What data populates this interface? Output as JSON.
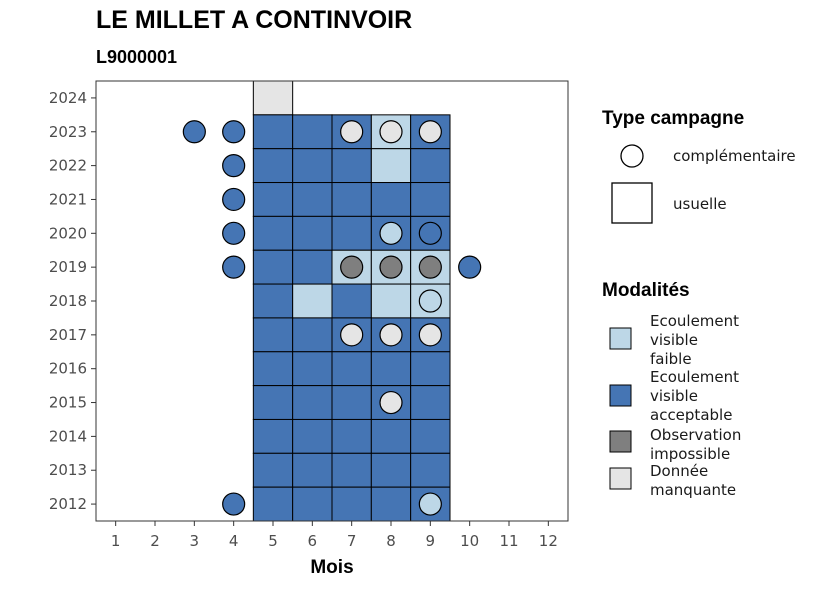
{
  "title": "LE MILLET A CONTINVOIR",
  "subtitle": "L9000001",
  "colors": {
    "faible": "#BDD7E7",
    "acceptable": "#4575B4",
    "impossible": "#7F7F7F",
    "manquante": "#E5E5E5"
  },
  "chart_data": {
    "type": "heatmap",
    "xlabel": "Mois",
    "ylabel": "",
    "x_ticks": [
      1,
      2,
      3,
      4,
      5,
      6,
      7,
      8,
      9,
      10,
      11,
      12
    ],
    "y_ticks": [
      2012,
      2013,
      2014,
      2015,
      2016,
      2017,
      2018,
      2019,
      2020,
      2021,
      2022,
      2023,
      2024
    ],
    "xlim": [
      0.5,
      12.5
    ],
    "ylim": [
      2011.5,
      2024.5
    ],
    "modalites": [
      {
        "key": "faible",
        "label": [
          "Ecoulement",
          "visible",
          "faible"
        ]
      },
      {
        "key": "acceptable",
        "label": [
          "Ecoulement",
          "visible",
          "acceptable"
        ]
      },
      {
        "key": "impossible",
        "label": [
          "Observation",
          "impossible"
        ]
      },
      {
        "key": "manquante",
        "label": [
          "Donnée",
          "manquante"
        ]
      }
    ],
    "campagnes": [
      {
        "key": "complementaire",
        "label": "complémentaire",
        "shape": "circle"
      },
      {
        "key": "usuelle",
        "label": "usuelle",
        "shape": "square"
      }
    ],
    "usuelle": [
      {
        "year": 2024,
        "month": 5,
        "mod": "manquante"
      },
      {
        "year": 2023,
        "month": 5,
        "mod": "acceptable"
      },
      {
        "year": 2023,
        "month": 6,
        "mod": "acceptable"
      },
      {
        "year": 2023,
        "month": 7,
        "mod": "acceptable"
      },
      {
        "year": 2023,
        "month": 8,
        "mod": "faible"
      },
      {
        "year": 2023,
        "month": 9,
        "mod": "acceptable"
      },
      {
        "year": 2022,
        "month": 5,
        "mod": "acceptable"
      },
      {
        "year": 2022,
        "month": 6,
        "mod": "acceptable"
      },
      {
        "year": 2022,
        "month": 7,
        "mod": "acceptable"
      },
      {
        "year": 2022,
        "month": 8,
        "mod": "faible"
      },
      {
        "year": 2022,
        "month": 9,
        "mod": "acceptable"
      },
      {
        "year": 2021,
        "month": 5,
        "mod": "acceptable"
      },
      {
        "year": 2021,
        "month": 6,
        "mod": "acceptable"
      },
      {
        "year": 2021,
        "month": 7,
        "mod": "acceptable"
      },
      {
        "year": 2021,
        "month": 8,
        "mod": "acceptable"
      },
      {
        "year": 2021,
        "month": 9,
        "mod": "acceptable"
      },
      {
        "year": 2020,
        "month": 5,
        "mod": "acceptable"
      },
      {
        "year": 2020,
        "month": 6,
        "mod": "acceptable"
      },
      {
        "year": 2020,
        "month": 7,
        "mod": "acceptable"
      },
      {
        "year": 2020,
        "month": 8,
        "mod": "acceptable"
      },
      {
        "year": 2020,
        "month": 9,
        "mod": "acceptable"
      },
      {
        "year": 2019,
        "month": 5,
        "mod": "acceptable"
      },
      {
        "year": 2019,
        "month": 6,
        "mod": "acceptable"
      },
      {
        "year": 2019,
        "month": 7,
        "mod": "faible"
      },
      {
        "year": 2019,
        "month": 8,
        "mod": "faible"
      },
      {
        "year": 2019,
        "month": 9,
        "mod": "faible"
      },
      {
        "year": 2018,
        "month": 5,
        "mod": "acceptable"
      },
      {
        "year": 2018,
        "month": 6,
        "mod": "faible"
      },
      {
        "year": 2018,
        "month": 7,
        "mod": "acceptable"
      },
      {
        "year": 2018,
        "month": 8,
        "mod": "faible"
      },
      {
        "year": 2018,
        "month": 9,
        "mod": "faible"
      },
      {
        "year": 2017,
        "month": 5,
        "mod": "acceptable"
      },
      {
        "year": 2017,
        "month": 6,
        "mod": "acceptable"
      },
      {
        "year": 2017,
        "month": 7,
        "mod": "acceptable"
      },
      {
        "year": 2017,
        "month": 8,
        "mod": "acceptable"
      },
      {
        "year": 2017,
        "month": 9,
        "mod": "acceptable"
      },
      {
        "year": 2016,
        "month": 5,
        "mod": "acceptable"
      },
      {
        "year": 2016,
        "month": 6,
        "mod": "acceptable"
      },
      {
        "year": 2016,
        "month": 7,
        "mod": "acceptable"
      },
      {
        "year": 2016,
        "month": 8,
        "mod": "acceptable"
      },
      {
        "year": 2016,
        "month": 9,
        "mod": "acceptable"
      },
      {
        "year": 2015,
        "month": 5,
        "mod": "acceptable"
      },
      {
        "year": 2015,
        "month": 6,
        "mod": "acceptable"
      },
      {
        "year": 2015,
        "month": 7,
        "mod": "acceptable"
      },
      {
        "year": 2015,
        "month": 8,
        "mod": "acceptable"
      },
      {
        "year": 2015,
        "month": 9,
        "mod": "acceptable"
      },
      {
        "year": 2014,
        "month": 5,
        "mod": "acceptable"
      },
      {
        "year": 2014,
        "month": 6,
        "mod": "acceptable"
      },
      {
        "year": 2014,
        "month": 7,
        "mod": "acceptable"
      },
      {
        "year": 2014,
        "month": 8,
        "mod": "acceptable"
      },
      {
        "year": 2014,
        "month": 9,
        "mod": "acceptable"
      },
      {
        "year": 2013,
        "month": 5,
        "mod": "acceptable"
      },
      {
        "year": 2013,
        "month": 6,
        "mod": "acceptable"
      },
      {
        "year": 2013,
        "month": 7,
        "mod": "acceptable"
      },
      {
        "year": 2013,
        "month": 8,
        "mod": "acceptable"
      },
      {
        "year": 2013,
        "month": 9,
        "mod": "acceptable"
      },
      {
        "year": 2012,
        "month": 5,
        "mod": "acceptable"
      },
      {
        "year": 2012,
        "month": 6,
        "mod": "acceptable"
      },
      {
        "year": 2012,
        "month": 7,
        "mod": "acceptable"
      },
      {
        "year": 2012,
        "month": 8,
        "mod": "acceptable"
      },
      {
        "year": 2012,
        "month": 9,
        "mod": "acceptable"
      }
    ],
    "complementaire": [
      {
        "year": 2023,
        "month": 3,
        "mod": "acceptable"
      },
      {
        "year": 2023,
        "month": 4,
        "mod": "acceptable"
      },
      {
        "year": 2023,
        "month": 7,
        "mod": "manquante"
      },
      {
        "year": 2023,
        "month": 8,
        "mod": "manquante"
      },
      {
        "year": 2023,
        "month": 9,
        "mod": "manquante"
      },
      {
        "year": 2022,
        "month": 4,
        "mod": "acceptable"
      },
      {
        "year": 2021,
        "month": 4,
        "mod": "acceptable"
      },
      {
        "year": 2020,
        "month": 4,
        "mod": "acceptable"
      },
      {
        "year": 2020,
        "month": 8,
        "mod": "faible"
      },
      {
        "year": 2020,
        "month": 9,
        "mod": "acceptable"
      },
      {
        "year": 2019,
        "month": 4,
        "mod": "acceptable"
      },
      {
        "year": 2019,
        "month": 7,
        "mod": "impossible"
      },
      {
        "year": 2019,
        "month": 8,
        "mod": "impossible"
      },
      {
        "year": 2019,
        "month": 9,
        "mod": "impossible"
      },
      {
        "year": 2019,
        "month": 10,
        "mod": "acceptable"
      },
      {
        "year": 2018,
        "month": 9,
        "mod": "faible"
      },
      {
        "year": 2017,
        "month": 7,
        "mod": "manquante"
      },
      {
        "year": 2017,
        "month": 8,
        "mod": "manquante"
      },
      {
        "year": 2017,
        "month": 9,
        "mod": "manquante"
      },
      {
        "year": 2015,
        "month": 8,
        "mod": "manquante"
      },
      {
        "year": 2012,
        "month": 4,
        "mod": "acceptable"
      },
      {
        "year": 2012,
        "month": 9,
        "mod": "faible"
      }
    ],
    "legend": {
      "campagne_title": "Type campagne",
      "modalites_title": "Modalités"
    }
  }
}
